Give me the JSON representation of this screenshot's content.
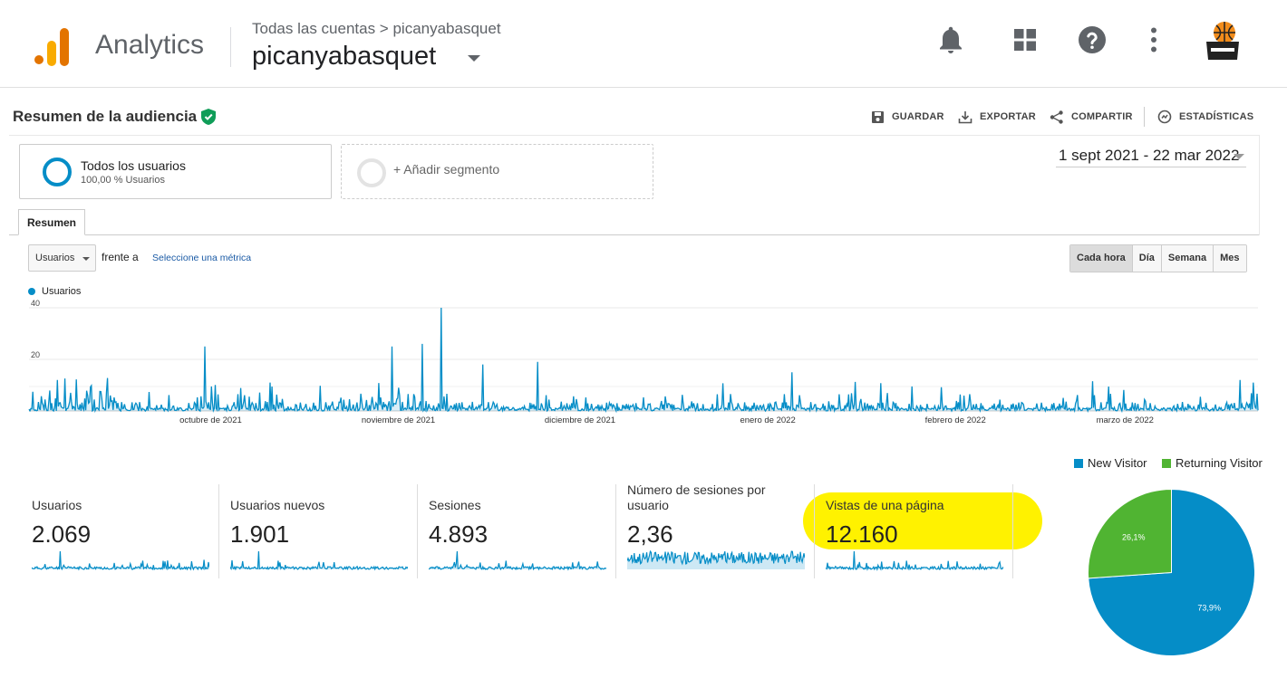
{
  "header": {
    "app_name": "Analytics",
    "breadcrumb": "Todas las cuentas > picanyabasquet",
    "account": "picanyabasquet",
    "icons": [
      "bell-icon",
      "apps-grid-icon",
      "help-icon",
      "more-vert-icon",
      "account-avatar"
    ]
  },
  "report": {
    "title": "Resumen de la audiencia",
    "actions": {
      "save": "GUARDAR",
      "export": "EXPORTAR",
      "share": "COMPARTIR",
      "insights": "ESTADÍSTICAS"
    }
  },
  "segments": {
    "active": {
      "name": "Todos los usuarios",
      "percent": "100,00 % Usuarios"
    },
    "add": "+ Añadir segmento"
  },
  "date_range": "1 sept 2021 - 22 mar 2022",
  "tabs": [
    "Resumen"
  ],
  "metric_selector": {
    "metric": "Usuarios",
    "versus": "frente a",
    "pick_metric": "Seleccione una métrica"
  },
  "periods": [
    "Cada hora",
    "Día",
    "Semana",
    "Mes"
  ],
  "chart_data": {
    "type": "line",
    "series": [
      {
        "name": "Usuarios",
        "color": "#058dc7"
      }
    ],
    "y_ticks": [
      "40",
      "20"
    ],
    "ylim": [
      0,
      40
    ],
    "x_ticks": [
      "octubre de 2021",
      "noviembre de 2021",
      "diciembre de 2021",
      "enero de 2022",
      "febrero de 2022",
      "marzo de 2022"
    ],
    "peaks": [
      {
        "approx_date": "2021-09-30",
        "value": 25
      },
      {
        "approx_date": "2021-10-31",
        "value": 25
      },
      {
        "approx_date": "2021-11-05",
        "value": 26
      },
      {
        "approx_date": "2021-11-08",
        "value": 40
      },
      {
        "approx_date": "2021-11-15",
        "value": 18
      },
      {
        "approx_date": "2021-11-24",
        "value": 19
      },
      {
        "approx_date": "2022-01-05",
        "value": 15
      },
      {
        "approx_date": "2022-03-20",
        "value": 12
      }
    ]
  },
  "scorecards": [
    {
      "label": "Usuarios",
      "value": "2.069"
    },
    {
      "label": "Usuarios nuevos",
      "value": "1.901"
    },
    {
      "label": "Sesiones",
      "value": "4.893"
    },
    {
      "label": "Número de sesiones por usuario",
      "value": "2,36"
    },
    {
      "label": "Vistas de una página",
      "value": "12.160"
    }
  ],
  "pie": {
    "type": "pie",
    "legend": [
      "New Visitor",
      "Returning Visitor"
    ],
    "slices": [
      {
        "name": "New Visitor",
        "value": 73.9,
        "label": "73,9%",
        "color": "#058dc7"
      },
      {
        "name": "Returning Visitor",
        "value": 26.1,
        "label": "26,1%",
        "color": "#50b432"
      }
    ]
  }
}
